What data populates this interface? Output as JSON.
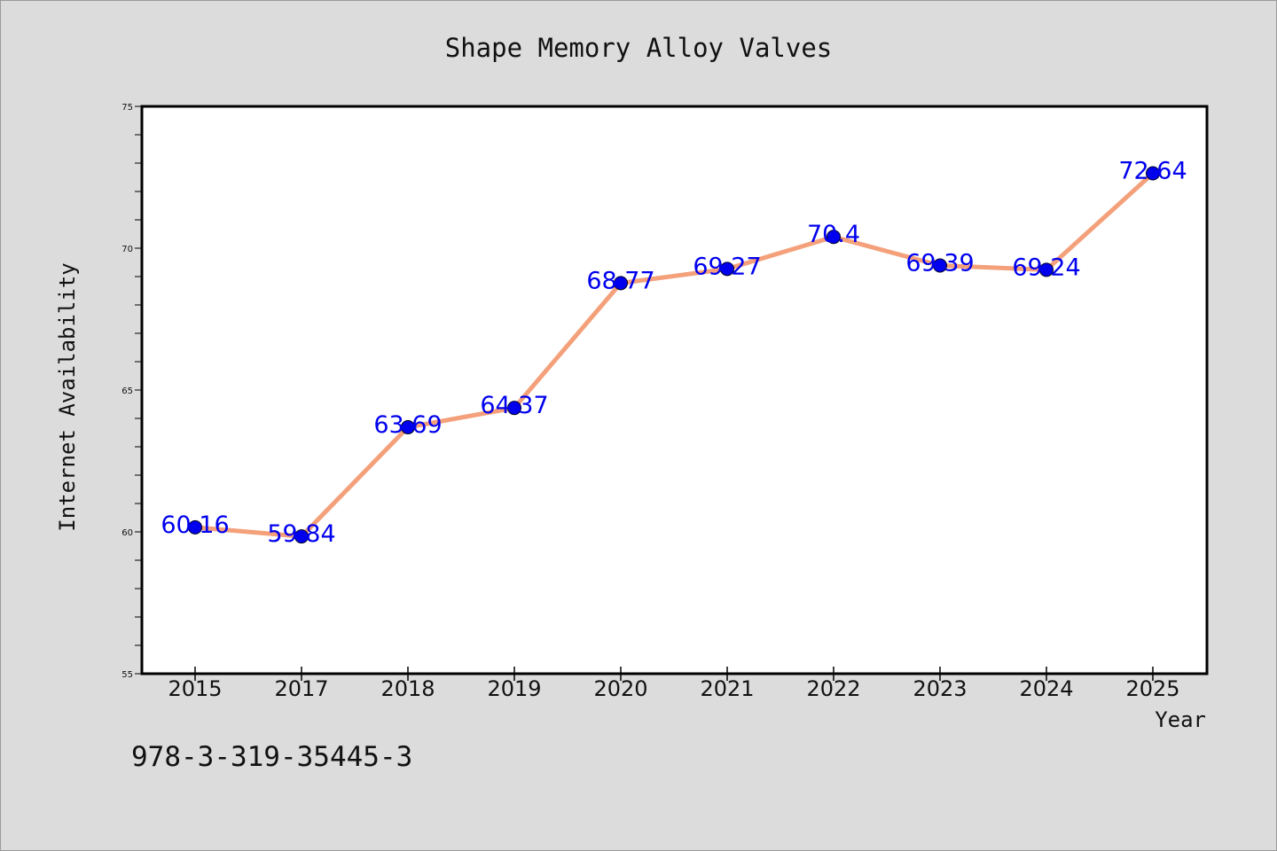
{
  "chart_data": {
    "type": "line",
    "title": "Shape Memory Alloy Valves",
    "xlabel": "Year",
    "ylabel": "Internet Availability",
    "categories": [
      "2015",
      "2017",
      "2018",
      "2019",
      "2020",
      "2021",
      "2022",
      "2023",
      "2024",
      "2025"
    ],
    "values": [
      60.16,
      59.84,
      63.69,
      64.37,
      68.77,
      69.27,
      70.4,
      69.39,
      69.24,
      72.64
    ],
    "data_labels": [
      "60.16",
      "59.84",
      "63.69",
      "64.37",
      "68.77",
      "69.27",
      "70.4",
      "69.39",
      "69.24",
      "72.64"
    ],
    "ylim": [
      55,
      75
    ],
    "yticks": [
      55,
      60,
      65,
      70,
      75
    ],
    "grid": false,
    "line_color": "#f4a07a",
    "marker_color": "#0000ee",
    "label_color": "#0000ee"
  },
  "footer": {
    "code": "978-3-319-35445-3"
  }
}
